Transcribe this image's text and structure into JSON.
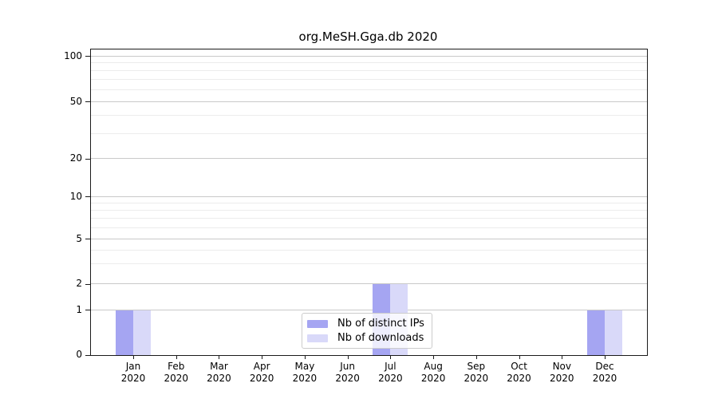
{
  "chart_data": {
    "type": "bar",
    "title": "org.MeSH.Gga.db 2020",
    "categories": [
      "Jan 2020",
      "Feb 2020",
      "Mar 2020",
      "Apr 2020",
      "May 2020",
      "Jun 2020",
      "Jul 2020",
      "Aug 2020",
      "Sep 2020",
      "Oct 2020",
      "Nov 2020",
      "Dec 2020"
    ],
    "series": [
      {
        "name": "Nb of distinct IPs",
        "color": "#a5a5f2",
        "values": [
          1,
          0,
          0,
          0,
          0,
          0,
          2,
          0,
          0,
          0,
          0,
          1
        ]
      },
      {
        "name": "Nb of downloads",
        "color": "#d9d9f9",
        "values": [
          1,
          0,
          0,
          0,
          0,
          0,
          2,
          0,
          0,
          0,
          0,
          1
        ]
      }
    ],
    "xlabel": "",
    "ylabel": "",
    "y_scale": "log",
    "ylim": [
      0,
      100
    ],
    "y_ticks": [
      0,
      1,
      2,
      5,
      10,
      20,
      50,
      100
    ],
    "y_minor_ticks": [
      3,
      4,
      6,
      7,
      8,
      9,
      30,
      40,
      60,
      70,
      80,
      90
    ],
    "grid": "horizontal",
    "legend_position": "lower center"
  },
  "colors": {
    "background": "#ffffff",
    "spine": "#1a1a1a",
    "grid_major": "#c9c9c9",
    "grid_minor": "#ececec",
    "text": "#000000",
    "legend_border": "#cccccc"
  }
}
